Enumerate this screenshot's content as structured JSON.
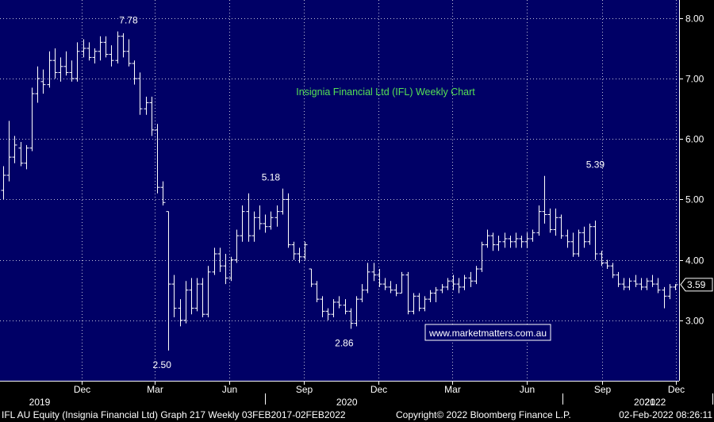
{
  "chart_data": {
    "type": "ohlc",
    "title": "Insignia Financial  Ltd (IFL) Weekly Chart",
    "y_ticks": [
      "3.00",
      "4.00",
      "5.00",
      "6.00",
      "7.00",
      "8.00"
    ],
    "ylim": [
      2.0,
      8.3
    ],
    "last_price_label": "3.59",
    "watermark": "www.marketmatters.com.au",
    "x_months": [
      {
        "label": "Dec",
        "date": "2018-12-01"
      },
      {
        "label": "Mar",
        "date": "2019-03-01"
      },
      {
        "label": "Jun",
        "date": "2019-06-01"
      },
      {
        "label": "Sep",
        "date": "2019-09-01"
      },
      {
        "label": "Dec",
        "date": "2019-12-01"
      },
      {
        "label": "Mar",
        "date": "2020-03-01"
      },
      {
        "label": "Jun",
        "date": "2020-06-01"
      },
      {
        "label": "Sep",
        "date": "2020-09-01"
      },
      {
        "label": "Dec",
        "date": "2020-12-01"
      }
    ],
    "x_years": [
      {
        "label": "2019",
        "date": "2018-10-01"
      },
      {
        "label": "2020",
        "date": "2019-07-15"
      },
      {
        "label": "2021",
        "date": "2020-07-15"
      },
      {
        "label": "2022",
        "date": "2021-01-15"
      }
    ],
    "annotations": [
      {
        "text": "7.78",
        "date": "2019-01-28",
        "value": 7.78
      },
      {
        "text": "2.50",
        "date": "2019-03-18",
        "value": 2.5
      },
      {
        "text": "5.18",
        "date": "2019-07-22",
        "value": 5.18
      },
      {
        "text": "2.86",
        "date": "2019-10-28",
        "value": 2.86
      },
      {
        "text": "5.39",
        "date": "2020-08-24",
        "value": 5.39
      }
    ],
    "bars": [
      {
        "d": "2018-08-27",
        "o": 5.15,
        "h": 5.55,
        "l": 5.0,
        "c": 5.4
      },
      {
        "d": "2018-09-03",
        "o": 5.4,
        "h": 6.3,
        "l": 5.3,
        "c": 5.7
      },
      {
        "d": "2018-09-10",
        "o": 5.7,
        "h": 6.05,
        "l": 5.6,
        "c": 5.9
      },
      {
        "d": "2018-09-17",
        "o": 5.85,
        "h": 5.95,
        "l": 5.55,
        "c": 5.6
      },
      {
        "d": "2018-09-24",
        "o": 5.6,
        "h": 5.9,
        "l": 5.5,
        "c": 5.85
      },
      {
        "d": "2018-10-01",
        "o": 5.85,
        "h": 6.85,
        "l": 5.8,
        "c": 6.75
      },
      {
        "d": "2018-10-08",
        "o": 6.75,
        "h": 7.2,
        "l": 6.6,
        "c": 7.0
      },
      {
        "d": "2018-10-15",
        "o": 6.95,
        "h": 7.15,
        "l": 6.75,
        "c": 6.9
      },
      {
        "d": "2018-10-22",
        "o": 6.9,
        "h": 7.45,
        "l": 6.85,
        "c": 7.3
      },
      {
        "d": "2018-10-29",
        "o": 7.3,
        "h": 7.5,
        "l": 7.0,
        "c": 7.1
      },
      {
        "d": "2018-11-05",
        "o": 7.1,
        "h": 7.35,
        "l": 6.95,
        "c": 7.2
      },
      {
        "d": "2018-11-12",
        "o": 7.2,
        "h": 7.45,
        "l": 7.05,
        "c": 7.1
      },
      {
        "d": "2018-11-19",
        "o": 7.1,
        "h": 7.3,
        "l": 6.95,
        "c": 7.0
      },
      {
        "d": "2018-11-26",
        "o": 7.0,
        "h": 7.6,
        "l": 6.95,
        "c": 7.45
      },
      {
        "d": "2018-12-03",
        "o": 7.45,
        "h": 7.65,
        "l": 7.35,
        "c": 7.5
      },
      {
        "d": "2018-12-10",
        "o": 7.5,
        "h": 7.6,
        "l": 7.3,
        "c": 7.35
      },
      {
        "d": "2018-12-17",
        "o": 7.35,
        "h": 7.5,
        "l": 7.25,
        "c": 7.45
      },
      {
        "d": "2018-12-24",
        "o": 7.45,
        "h": 7.7,
        "l": 7.3,
        "c": 7.6
      },
      {
        "d": "2018-12-31",
        "o": 7.6,
        "h": 7.7,
        "l": 7.35,
        "c": 7.4
      },
      {
        "d": "2019-01-07",
        "o": 7.4,
        "h": 7.55,
        "l": 7.2,
        "c": 7.3
      },
      {
        "d": "2019-01-14",
        "o": 7.3,
        "h": 7.78,
        "l": 7.25,
        "c": 7.7
      },
      {
        "d": "2019-01-21",
        "o": 7.7,
        "h": 7.75,
        "l": 7.35,
        "c": 7.45
      },
      {
        "d": "2019-01-28",
        "o": 7.45,
        "h": 7.65,
        "l": 7.2,
        "c": 7.25
      },
      {
        "d": "2019-02-04",
        "o": 7.25,
        "h": 7.3,
        "l": 6.9,
        "c": 7.0
      },
      {
        "d": "2019-02-11",
        "o": 7.0,
        "h": 7.1,
        "l": 6.4,
        "c": 6.5
      },
      {
        "d": "2019-02-18",
        "o": 6.5,
        "h": 6.7,
        "l": 6.4,
        "c": 6.6
      },
      {
        "d": "2019-02-25",
        "o": 6.6,
        "h": 6.7,
        "l": 6.05,
        "c": 6.15
      },
      {
        "d": "2019-03-04",
        "o": 6.15,
        "h": 6.25,
        "l": 5.1,
        "c": 5.2
      },
      {
        "d": "2019-03-11",
        "o": 5.2,
        "h": 5.3,
        "l": 4.9,
        "c": 4.95
      },
      {
        "d": "2019-03-18",
        "o": 4.8,
        "h": 4.8,
        "l": 2.5,
        "c": 3.6
      },
      {
        "d": "2019-03-25",
        "o": 3.6,
        "h": 3.75,
        "l": 3.05,
        "c": 3.2
      },
      {
        "d": "2019-04-01",
        "o": 3.2,
        "h": 3.35,
        "l": 2.9,
        "c": 3.0
      },
      {
        "d": "2019-04-08",
        "o": 3.0,
        "h": 3.65,
        "l": 2.95,
        "c": 3.5
      },
      {
        "d": "2019-04-15",
        "o": 3.5,
        "h": 3.7,
        "l": 3.1,
        "c": 3.2
      },
      {
        "d": "2019-04-22",
        "o": 3.2,
        "h": 3.7,
        "l": 3.15,
        "c": 3.6
      },
      {
        "d": "2019-04-29",
        "o": 3.6,
        "h": 3.7,
        "l": 3.05,
        "c": 3.1
      },
      {
        "d": "2019-05-06",
        "o": 3.1,
        "h": 3.9,
        "l": 3.05,
        "c": 3.8
      },
      {
        "d": "2019-05-13",
        "o": 3.8,
        "h": 4.2,
        "l": 3.75,
        "c": 4.1
      },
      {
        "d": "2019-05-20",
        "o": 4.1,
        "h": 4.2,
        "l": 3.8,
        "c": 3.9
      },
      {
        "d": "2019-05-27",
        "o": 3.9,
        "h": 4.1,
        "l": 3.6,
        "c": 3.7
      },
      {
        "d": "2019-06-03",
        "o": 3.7,
        "h": 4.05,
        "l": 3.65,
        "c": 4.0
      },
      {
        "d": "2019-06-10",
        "o": 4.0,
        "h": 4.5,
        "l": 3.95,
        "c": 4.4
      },
      {
        "d": "2019-06-17",
        "o": 4.4,
        "h": 4.9,
        "l": 4.3,
        "c": 4.8
      },
      {
        "d": "2019-06-24",
        "o": 4.8,
        "h": 5.1,
        "l": 4.3,
        "c": 4.4
      },
      {
        "d": "2019-07-01",
        "o": 4.4,
        "h": 4.8,
        "l": 4.3,
        "c": 4.7
      },
      {
        "d": "2019-07-08",
        "o": 4.7,
        "h": 4.9,
        "l": 4.5,
        "c": 4.6
      },
      {
        "d": "2019-07-15",
        "o": 4.6,
        "h": 4.75,
        "l": 4.45,
        "c": 4.55
      },
      {
        "d": "2019-07-22",
        "o": 4.55,
        "h": 4.8,
        "l": 4.5,
        "c": 4.7
      },
      {
        "d": "2019-07-29",
        "o": 4.7,
        "h": 4.9,
        "l": 4.55,
        "c": 4.8
      },
      {
        "d": "2019-08-05",
        "o": 4.8,
        "h": 5.18,
        "l": 4.75,
        "c": 5.0
      },
      {
        "d": "2019-08-12",
        "o": 5.0,
        "h": 5.1,
        "l": 4.2,
        "c": 4.25
      },
      {
        "d": "2019-08-19",
        "o": 4.25,
        "h": 4.3,
        "l": 4.0,
        "c": 4.1
      },
      {
        "d": "2019-08-26",
        "o": 4.1,
        "h": 4.2,
        "l": 3.95,
        "c": 4.05
      },
      {
        "d": "2019-09-02",
        "o": 4.05,
        "h": 4.3,
        "l": 4.0,
        "c": 4.25
      },
      {
        "d": "2019-09-09",
        "o": 3.85,
        "h": 3.85,
        "l": 3.55,
        "c": 3.6
      },
      {
        "d": "2019-09-16",
        "o": 3.6,
        "h": 3.65,
        "l": 3.3,
        "c": 3.35
      },
      {
        "d": "2019-09-23",
        "o": 3.35,
        "h": 3.4,
        "l": 3.05,
        "c": 3.15
      },
      {
        "d": "2019-09-30",
        "o": 3.15,
        "h": 3.2,
        "l": 3.0,
        "c": 3.1
      },
      {
        "d": "2019-10-07",
        "o": 3.1,
        "h": 3.35,
        "l": 3.05,
        "c": 3.3
      },
      {
        "d": "2019-10-14",
        "o": 3.3,
        "h": 3.4,
        "l": 3.2,
        "c": 3.25
      },
      {
        "d": "2019-10-21",
        "o": 3.25,
        "h": 3.35,
        "l": 3.1,
        "c": 3.15
      },
      {
        "d": "2019-10-28",
        "o": 3.15,
        "h": 3.2,
        "l": 2.86,
        "c": 2.95
      },
      {
        "d": "2019-11-04",
        "o": 2.95,
        "h": 3.4,
        "l": 2.9,
        "c": 3.35
      },
      {
        "d": "2019-11-11",
        "o": 3.35,
        "h": 3.6,
        "l": 3.3,
        "c": 3.5
      },
      {
        "d": "2019-11-18",
        "o": 3.5,
        "h": 3.95,
        "l": 3.45,
        "c": 3.8
      },
      {
        "d": "2019-11-25",
        "o": 3.8,
        "h": 3.95,
        "l": 3.65,
        "c": 3.75
      },
      {
        "d": "2019-12-02",
        "o": 3.75,
        "h": 3.85,
        "l": 3.55,
        "c": 3.6
      },
      {
        "d": "2019-12-09",
        "o": 3.6,
        "h": 3.7,
        "l": 3.5,
        "c": 3.55
      },
      {
        "d": "2019-12-16",
        "o": 3.55,
        "h": 3.65,
        "l": 3.45,
        "c": 3.5
      },
      {
        "d": "2019-12-23",
        "o": 3.5,
        "h": 3.6,
        "l": 3.4,
        "c": 3.45
      },
      {
        "d": "2019-12-30",
        "o": 3.45,
        "h": 3.8,
        "l": 3.45,
        "c": 3.75
      },
      {
        "d": "2020-01-06",
        "o": 3.75,
        "h": 3.8,
        "l": 3.1,
        "c": 3.15
      },
      {
        "d": "2020-01-13",
        "o": 3.15,
        "h": 3.45,
        "l": 3.1,
        "c": 3.4
      },
      {
        "d": "2020-01-20",
        "o": 3.4,
        "h": 3.45,
        "l": 3.15,
        "c": 3.2
      },
      {
        "d": "2020-01-27",
        "o": 3.2,
        "h": 3.4,
        "l": 3.15,
        "c": 3.35
      },
      {
        "d": "2020-02-03",
        "o": 3.35,
        "h": 3.5,
        "l": 3.3,
        "c": 3.45
      },
      {
        "d": "2020-02-10",
        "o": 3.45,
        "h": 3.55,
        "l": 3.3,
        "c": 3.5
      },
      {
        "d": "2020-02-17",
        "o": 3.5,
        "h": 3.6,
        "l": 3.45,
        "c": 3.55
      },
      {
        "d": "2020-02-24",
        "o": 3.55,
        "h": 3.7,
        "l": 3.5,
        "c": 3.65
      },
      {
        "d": "2020-03-02",
        "o": 3.65,
        "h": 3.75,
        "l": 3.5,
        "c": 3.6
      },
      {
        "d": "2020-03-09",
        "o": 3.6,
        "h": 3.7,
        "l": 3.45,
        "c": 3.55
      },
      {
        "d": "2020-03-16",
        "o": 3.55,
        "h": 3.75,
        "l": 3.5,
        "c": 3.7
      },
      {
        "d": "2020-03-23",
        "o": 3.7,
        "h": 3.8,
        "l": 3.55,
        "c": 3.65
      },
      {
        "d": "2020-03-30",
        "o": 3.65,
        "h": 3.9,
        "l": 3.6,
        "c": 3.85
      },
      {
        "d": "2020-04-06",
        "o": 3.85,
        "h": 4.3,
        "l": 3.8,
        "c": 4.25
      },
      {
        "d": "2020-04-13",
        "o": 4.25,
        "h": 4.5,
        "l": 4.2,
        "c": 4.4
      },
      {
        "d": "2020-04-20",
        "o": 4.4,
        "h": 4.45,
        "l": 4.15,
        "c": 4.25
      },
      {
        "d": "2020-04-27",
        "o": 4.25,
        "h": 4.4,
        "l": 4.15,
        "c": 4.3
      },
      {
        "d": "2020-05-04",
        "o": 4.3,
        "h": 4.45,
        "l": 4.2,
        "c": 4.35
      },
      {
        "d": "2020-05-11",
        "o": 4.35,
        "h": 4.4,
        "l": 4.2,
        "c": 4.3
      },
      {
        "d": "2020-05-18",
        "o": 4.3,
        "h": 4.45,
        "l": 4.2,
        "c": 4.35
      },
      {
        "d": "2020-05-25",
        "o": 4.35,
        "h": 4.4,
        "l": 4.2,
        "c": 4.3
      },
      {
        "d": "2020-06-01",
        "o": 4.3,
        "h": 4.45,
        "l": 4.2,
        "c": 4.35
      },
      {
        "d": "2020-06-08",
        "o": 4.35,
        "h": 4.5,
        "l": 4.3,
        "c": 4.45
      },
      {
        "d": "2020-06-15",
        "o": 4.45,
        "h": 4.9,
        "l": 4.4,
        "c": 4.8
      },
      {
        "d": "2020-06-22",
        "o": 4.8,
        "h": 5.39,
        "l": 4.6,
        "c": 4.75
      },
      {
        "d": "2020-06-29",
        "o": 4.75,
        "h": 4.85,
        "l": 4.45,
        "c": 4.5
      },
      {
        "d": "2020-07-06",
        "o": 4.5,
        "h": 4.85,
        "l": 4.4,
        "c": 4.7
      },
      {
        "d": "2020-07-13",
        "o": 4.7,
        "h": 4.75,
        "l": 4.35,
        "c": 4.4
      },
      {
        "d": "2020-07-20",
        "o": 4.4,
        "h": 4.5,
        "l": 4.2,
        "c": 4.3
      },
      {
        "d": "2020-07-27",
        "o": 4.3,
        "h": 4.45,
        "l": 4.05,
        "c": 4.1
      },
      {
        "d": "2020-08-03",
        "o": 4.1,
        "h": 4.5,
        "l": 4.05,
        "c": 4.45
      },
      {
        "d": "2020-08-10",
        "o": 4.45,
        "h": 4.55,
        "l": 4.2,
        "c": 4.3
      },
      {
        "d": "2020-08-17",
        "o": 4.3,
        "h": 4.6,
        "l": 4.25,
        "c": 4.55
      },
      {
        "d": "2020-08-24",
        "o": 4.55,
        "h": 4.65,
        "l": 4.0,
        "c": 4.1
      },
      {
        "d": "2020-08-31",
        "o": 4.1,
        "h": 4.15,
        "l": 3.9,
        "c": 3.95
      },
      {
        "d": "2020-09-07",
        "o": 3.95,
        "h": 4.0,
        "l": 3.85,
        "c": 3.9
      },
      {
        "d": "2020-09-14",
        "o": 3.9,
        "h": 3.95,
        "l": 3.7,
        "c": 3.75
      },
      {
        "d": "2020-09-21",
        "o": 3.75,
        "h": 3.8,
        "l": 3.55,
        "c": 3.6
      },
      {
        "d": "2020-09-28",
        "o": 3.6,
        "h": 3.7,
        "l": 3.5,
        "c": 3.55
      },
      {
        "d": "2020-10-05",
        "o": 3.55,
        "h": 3.7,
        "l": 3.5,
        "c": 3.65
      },
      {
        "d": "2020-10-12",
        "o": 3.65,
        "h": 3.75,
        "l": 3.55,
        "c": 3.6
      },
      {
        "d": "2020-10-19",
        "o": 3.6,
        "h": 3.7,
        "l": 3.5,
        "c": 3.55
      },
      {
        "d": "2020-10-26",
        "o": 3.55,
        "h": 3.7,
        "l": 3.5,
        "c": 3.65
      },
      {
        "d": "2020-11-02",
        "o": 3.65,
        "h": 3.75,
        "l": 3.55,
        "c": 3.6
      },
      {
        "d": "2020-11-09",
        "o": 3.6,
        "h": 3.7,
        "l": 3.45,
        "c": 3.5
      },
      {
        "d": "2020-11-16",
        "o": 3.5,
        "h": 3.55,
        "l": 3.2,
        "c": 3.4
      },
      {
        "d": "2020-11-23",
        "o": 3.4,
        "h": 3.6,
        "l": 3.35,
        "c": 3.55
      },
      {
        "d": "2020-11-30",
        "o": 3.55,
        "h": 3.6,
        "l": 3.5,
        "c": 3.59
      }
    ]
  },
  "footer": {
    "left": "IFL AU Equity (Insignia Financial Ltd) Graph 217  Weekly 03FEB2017-02FEB2022",
    "copyright": "Copyright© 2022 Bloomberg Finance L.P.",
    "timestamp": "02-Feb-2022 08:26:11"
  },
  "colors": {
    "background": "#000000",
    "plot_background": "#000066",
    "grid": "#FFFFFF",
    "bars": "#FFFFFF",
    "title": "#55E055",
    "text": "#FFFFFF",
    "watermark_text": "#FFFFFF",
    "watermark_bg": "#000066"
  }
}
